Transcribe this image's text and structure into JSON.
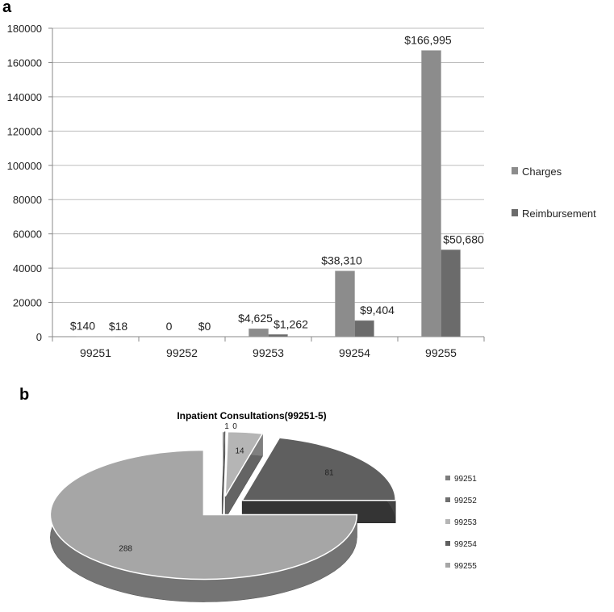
{
  "panels": {
    "a": "a",
    "b": "b"
  },
  "chart_data": [
    {
      "type": "bar",
      "categories": [
        "99251",
        "99252",
        "99253",
        "99254",
        "99255"
      ],
      "series": [
        {
          "name": "Charges",
          "values": [
            140,
            0,
            4625,
            38310,
            166995
          ],
          "labels": [
            "$140",
            "0",
            "$4,625",
            "$38,310",
            "$166,995"
          ],
          "color": "#8c8c8c"
        },
        {
          "name": "Reimbursement",
          "values": [
            18,
            0,
            1262,
            9404,
            50680
          ],
          "labels": [
            "$18",
            "$0",
            "$1,262",
            "$9,404",
            "$50,680"
          ],
          "color": "#6b6b6b"
        }
      ],
      "ylim": [
        0,
        180000
      ],
      "yticks": [
        "0",
        "20000",
        "40000",
        "60000",
        "80000",
        "100000",
        "120000",
        "140000",
        "160000",
        "180000"
      ],
      "grid": true,
      "legend": "right"
    },
    {
      "type": "pie",
      "title": "Inpatient Consultations(99251-5)",
      "labels": [
        "99251",
        "99252",
        "99253",
        "99254",
        "99255"
      ],
      "values": [
        1,
        0,
        14,
        81,
        288
      ],
      "value_labels": [
        "1",
        "0",
        "14",
        "81",
        "288"
      ],
      "colors": [
        "#7d7d7d",
        "#6f6f6f",
        "#b5b5b5",
        "#5f5f5f",
        "#a6a6a6"
      ],
      "style": "3d-exploded",
      "legend": "right"
    }
  ]
}
